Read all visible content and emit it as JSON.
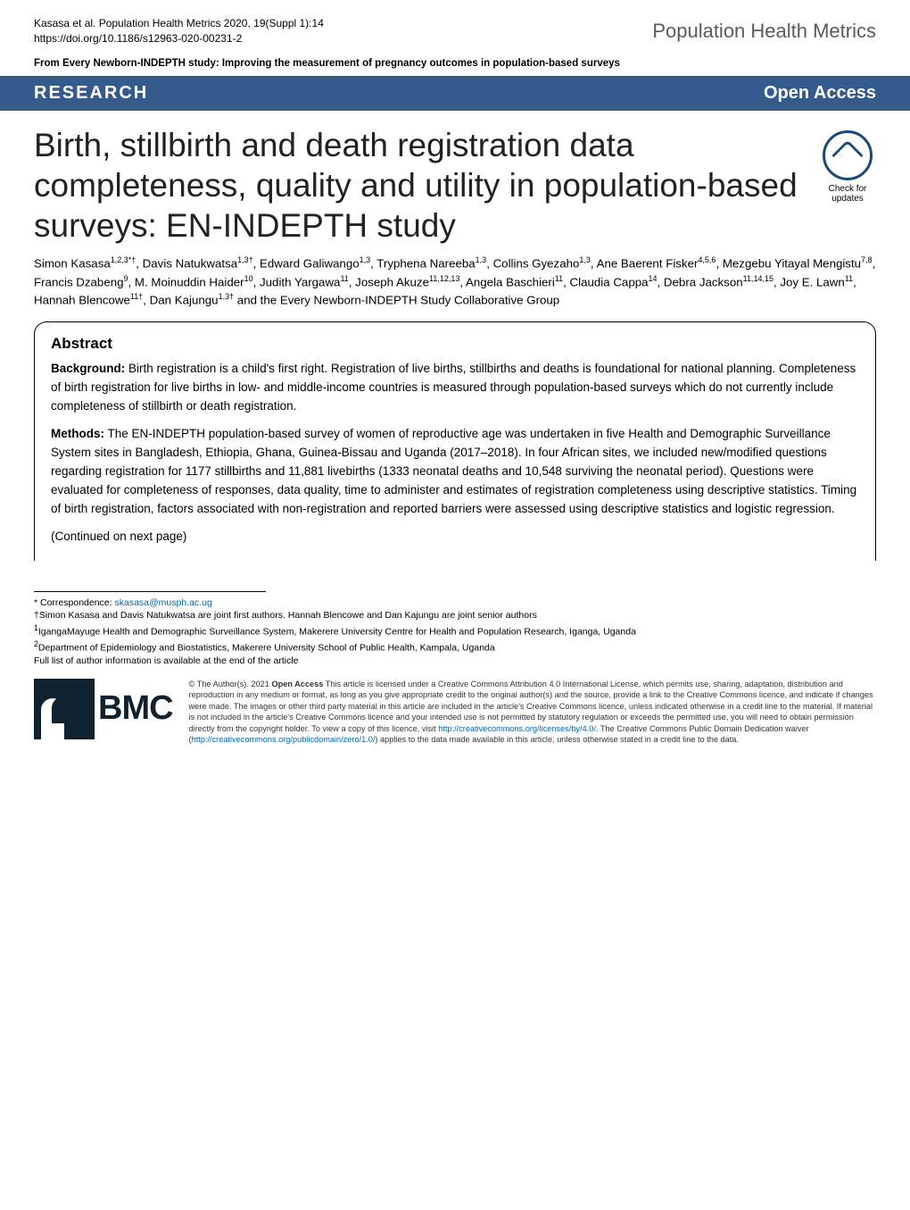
{
  "header": {
    "citation_line1": "Kasasa et al. Population Health Metrics 2020, 19(Suppl 1):14",
    "citation_line2": "https://doi.org/10.1186/s12963-020-00231-2",
    "journal": "Population Health Metrics"
  },
  "from_line": "From Every Newborn-INDEPTH study: Improving the measurement of pregnancy outcomes in population-based surveys",
  "banner": {
    "left": "RESEARCH",
    "right": "Open Access"
  },
  "title": "Birth, stillbirth and death registration data completeness, quality and utility in population-based surveys: EN-INDEPTH study",
  "updates_badge": {
    "line1": "Check for",
    "line2": "updates"
  },
  "authors_html": "Simon Kasasa<sup>1,2,3*†</sup>, Davis Natukwatsa<sup>1,3†</sup>, Edward Galiwango<sup>1,3</sup>, Tryphena Nareeba<sup>1,3</sup>, Collins Gyezaho<sup>1,3</sup>, Ane Baerent Fisker<sup>4,5,6</sup>, Mezgebu Yitayal Mengistu<sup>7,8</sup>, Francis Dzabeng<sup>9</sup>, M. Moinuddin Haider<sup>10</sup>, Judith Yargawa<sup>11</sup>, Joseph Akuze<sup>11,12,13</sup>, Angela Baschieri<sup>11</sup>, Claudia Cappa<sup>14</sup>, Debra Jackson<sup>11,14,15</sup>, Joy E. Lawn<sup>11</sup>, Hannah Blencowe<sup>11†</sup>, Dan Kajungu<sup>1,3†</sup> and the Every Newborn-INDEPTH Study Collaborative Group",
  "abstract": {
    "heading": "Abstract",
    "background_label": "Background:",
    "background_text": " Birth registration is a child's first right. Registration of live births, stillbirths and deaths is foundational for national planning. Completeness of birth registration for live births in low- and middle-income countries is measured through population-based surveys which do not currently include completeness of stillbirth or death registration.",
    "methods_label": "Methods:",
    "methods_text": " The EN-INDEPTH population-based survey of women of reproductive age was undertaken in five Health and Demographic Surveillance System sites in Bangladesh, Ethiopia, Ghana, Guinea-Bissau and Uganda (2017–2018). In four African sites, we included new/modified questions regarding registration for 1177 stillbirths and 11,881 livebirths (1333 neonatal deaths and 10,548 surviving the neonatal period). Questions were evaluated for completeness of responses, data quality, time to administer and estimates of registration completeness using descriptive statistics. Timing of birth registration, factors associated with non-registration and reported barriers were assessed using descriptive statistics and logistic regression.",
    "continued": "(Continued on next page)"
  },
  "footer": {
    "correspondence_label": "* Correspondence: ",
    "correspondence_email": "skasasa@musph.ac.ug",
    "note_dagger": "†Simon Kasasa and Davis Natukwatsa are joint first authors. Hannah Blencowe and Dan Kajungu are joint senior authors",
    "aff1": "1IgangaMayuge Health and Demographic Surveillance System, Makerere University Centre for Health and Population Research, Iganga, Uganda",
    "aff2": "2Department of Epidemiology and Biostatistics, Makerere University School of Public Health, Kampala, Uganda",
    "full_list": "Full list of author information is available at the end of the article"
  },
  "bmc": {
    "text": "BMC"
  },
  "license": {
    "text_before": "© The Author(s). 2021 ",
    "open_access": "Open Access",
    "text_mid1": " This article is licensed under a Creative Commons Attribution 4.0 International License, which permits use, sharing, adaptation, distribution and reproduction in any medium or format, as long as you give appropriate credit to the original author(s) and the source, provide a link to the Creative Commons licence, and indicate if changes were made. The images or other third party material in this article are included in the article's Creative Commons licence, unless indicated otherwise in a credit line to the material. If material is not included in the article's Creative Commons licence and your intended use is not permitted by statutory regulation or exceeds the permitted use, you will need to obtain permission directly from the copyright holder. To view a copy of this licence, visit ",
    "link1": "http://creativecommons.org/licenses/by/4.0/",
    "text_mid2": ". The Creative Commons Public Domain Dedication waiver (",
    "link2": "http://creativecommons.org/publicdomain/zero/1.0/",
    "text_after": ") applies to the data made available in this article, unless otherwise stated in a credit line to the data."
  },
  "colors": {
    "banner_bg": "#355B8C",
    "link": "#0066aa",
    "bmc_dark": "#10212f"
  }
}
